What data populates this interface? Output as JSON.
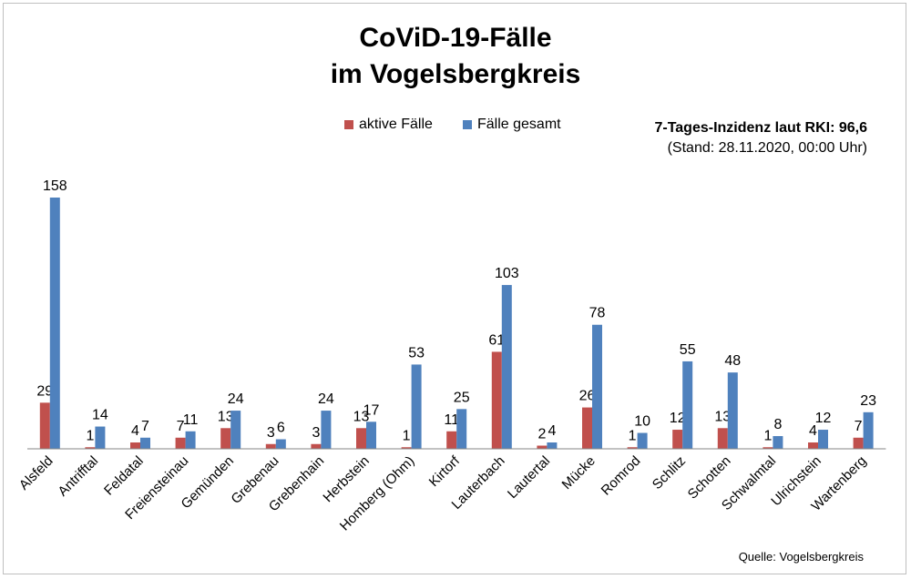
{
  "chart_data": {
    "type": "bar",
    "title_line1": "CoViD-19-Fälle",
    "title_line2": "im Vogelsbergkreis",
    "categories": [
      "Alsfeld",
      "Antrifftal",
      "Feldatal",
      "Freiensteinau",
      "Gemünden",
      "Grebenau",
      "Grebenhain",
      "Herbstein",
      "Homberg (Ohm)",
      "Kirtorf",
      "Lauterbach",
      "Lautertal",
      "Mücke",
      "Romrod",
      "Schlitz",
      "Schotten",
      "Schwalmtal",
      "Ulrichstein",
      "Wartenberg"
    ],
    "series": [
      {
        "name": "aktive Fälle",
        "color": "#c0504d",
        "values": [
          29,
          1,
          4,
          7,
          13,
          3,
          3,
          13,
          1,
          11,
          61,
          2,
          26,
          1,
          12,
          13,
          1,
          4,
          7
        ]
      },
      {
        "name": "Fälle gesamt",
        "color": "#4f81bd",
        "values": [
          158,
          14,
          7,
          11,
          24,
          6,
          24,
          17,
          53,
          25,
          103,
          4,
          78,
          10,
          55,
          48,
          8,
          12,
          23
        ]
      }
    ],
    "ylim": [
      0,
      158
    ],
    "grid": false,
    "legend_position": "top"
  },
  "incidence_label": "7-Tages-Inzidenz laut RKI: 96,6",
  "stand": "(Stand: 28.11.2020, 00:00 Uhr)",
  "source": "Quelle: Vogelsbergkreis"
}
